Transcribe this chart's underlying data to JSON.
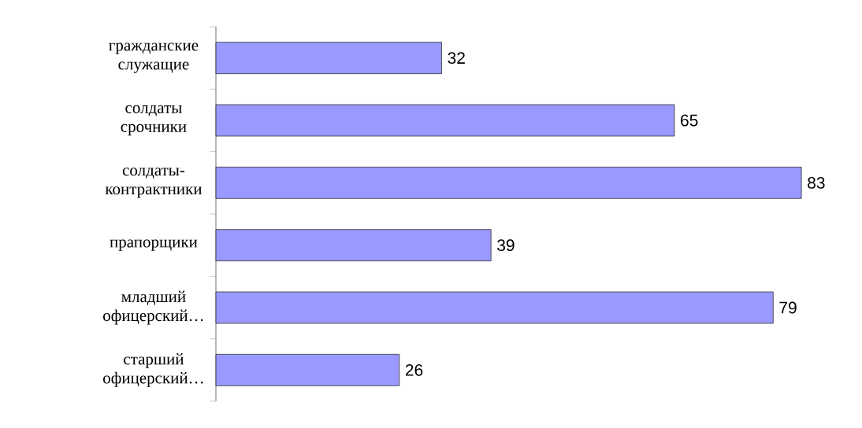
{
  "chart_data": {
    "type": "bar",
    "orientation": "horizontal",
    "data_labels": true,
    "color": "#9999ff",
    "categories": [
      "гражданские служащие",
      "солдаты срочники",
      "солдаты-контрактники",
      "прапорщики",
      "младший офицерский…",
      "старший офицерский…"
    ],
    "values": [
      32,
      65,
      83,
      39,
      79,
      26
    ]
  }
}
